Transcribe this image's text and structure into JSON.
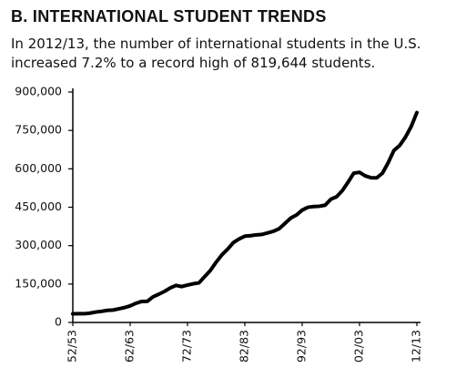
{
  "chart_data": {
    "type": "line",
    "title": "B.  INTERNATIONAL STUDENT TRENDS",
    "subtitle": "In 2012/13, the number of international students in the U.S. increased 7.2% to a record high of 819,644 students.",
    "categories": [
      "52/53",
      null,
      null,
      null,
      null,
      null,
      null,
      null,
      null,
      null,
      "62/63",
      null,
      null,
      null,
      null,
      null,
      null,
      null,
      null,
      null,
      "72/73",
      null,
      null,
      null,
      null,
      null,
      null,
      null,
      null,
      null,
      "82/83",
      null,
      null,
      null,
      null,
      null,
      null,
      null,
      null,
      null,
      "92/93",
      null,
      null,
      null,
      null,
      null,
      null,
      null,
      null,
      null,
      "02/03",
      null,
      null,
      null,
      null,
      null,
      null,
      null,
      null,
      null,
      "12/13"
    ],
    "values": [
      33675,
      34232,
      34041,
      36494,
      40666,
      43391,
      47245,
      48486,
      53107,
      58086,
      64705,
      74814,
      82045,
      82709,
      100262,
      110315,
      121362,
      134959,
      144708,
      140126,
      146097,
      151066,
      154580,
      179344,
      203068,
      235509,
      263938,
      286343,
      311882,
      326299,
      336985,
      338894,
      342113,
      343777,
      349609,
      356187,
      366354,
      386851,
      407529,
      419585,
      438618,
      449749,
      452635,
      453787,
      457984,
      481280,
      490933,
      514723,
      547867,
      582996,
      586323,
      572509,
      565039,
      564766,
      582984,
      623805,
      671616,
      690923,
      723277,
      764495,
      819644
    ],
    "color": "#000000",
    "ylim": [
      0,
      900000
    ],
    "yticks": [
      0,
      {
        "value": 150000,
        "label": "150,000"
      },
      {
        "value": 300000,
        "label": "300,000"
      },
      {
        "value": 450000,
        "label": "450,000"
      },
      {
        "value": 600000,
        "label": "600,000"
      },
      {
        "value": 750000,
        "label": "750,000"
      },
      {
        "value": 900000,
        "label": "900,000"
      }
    ]
  }
}
